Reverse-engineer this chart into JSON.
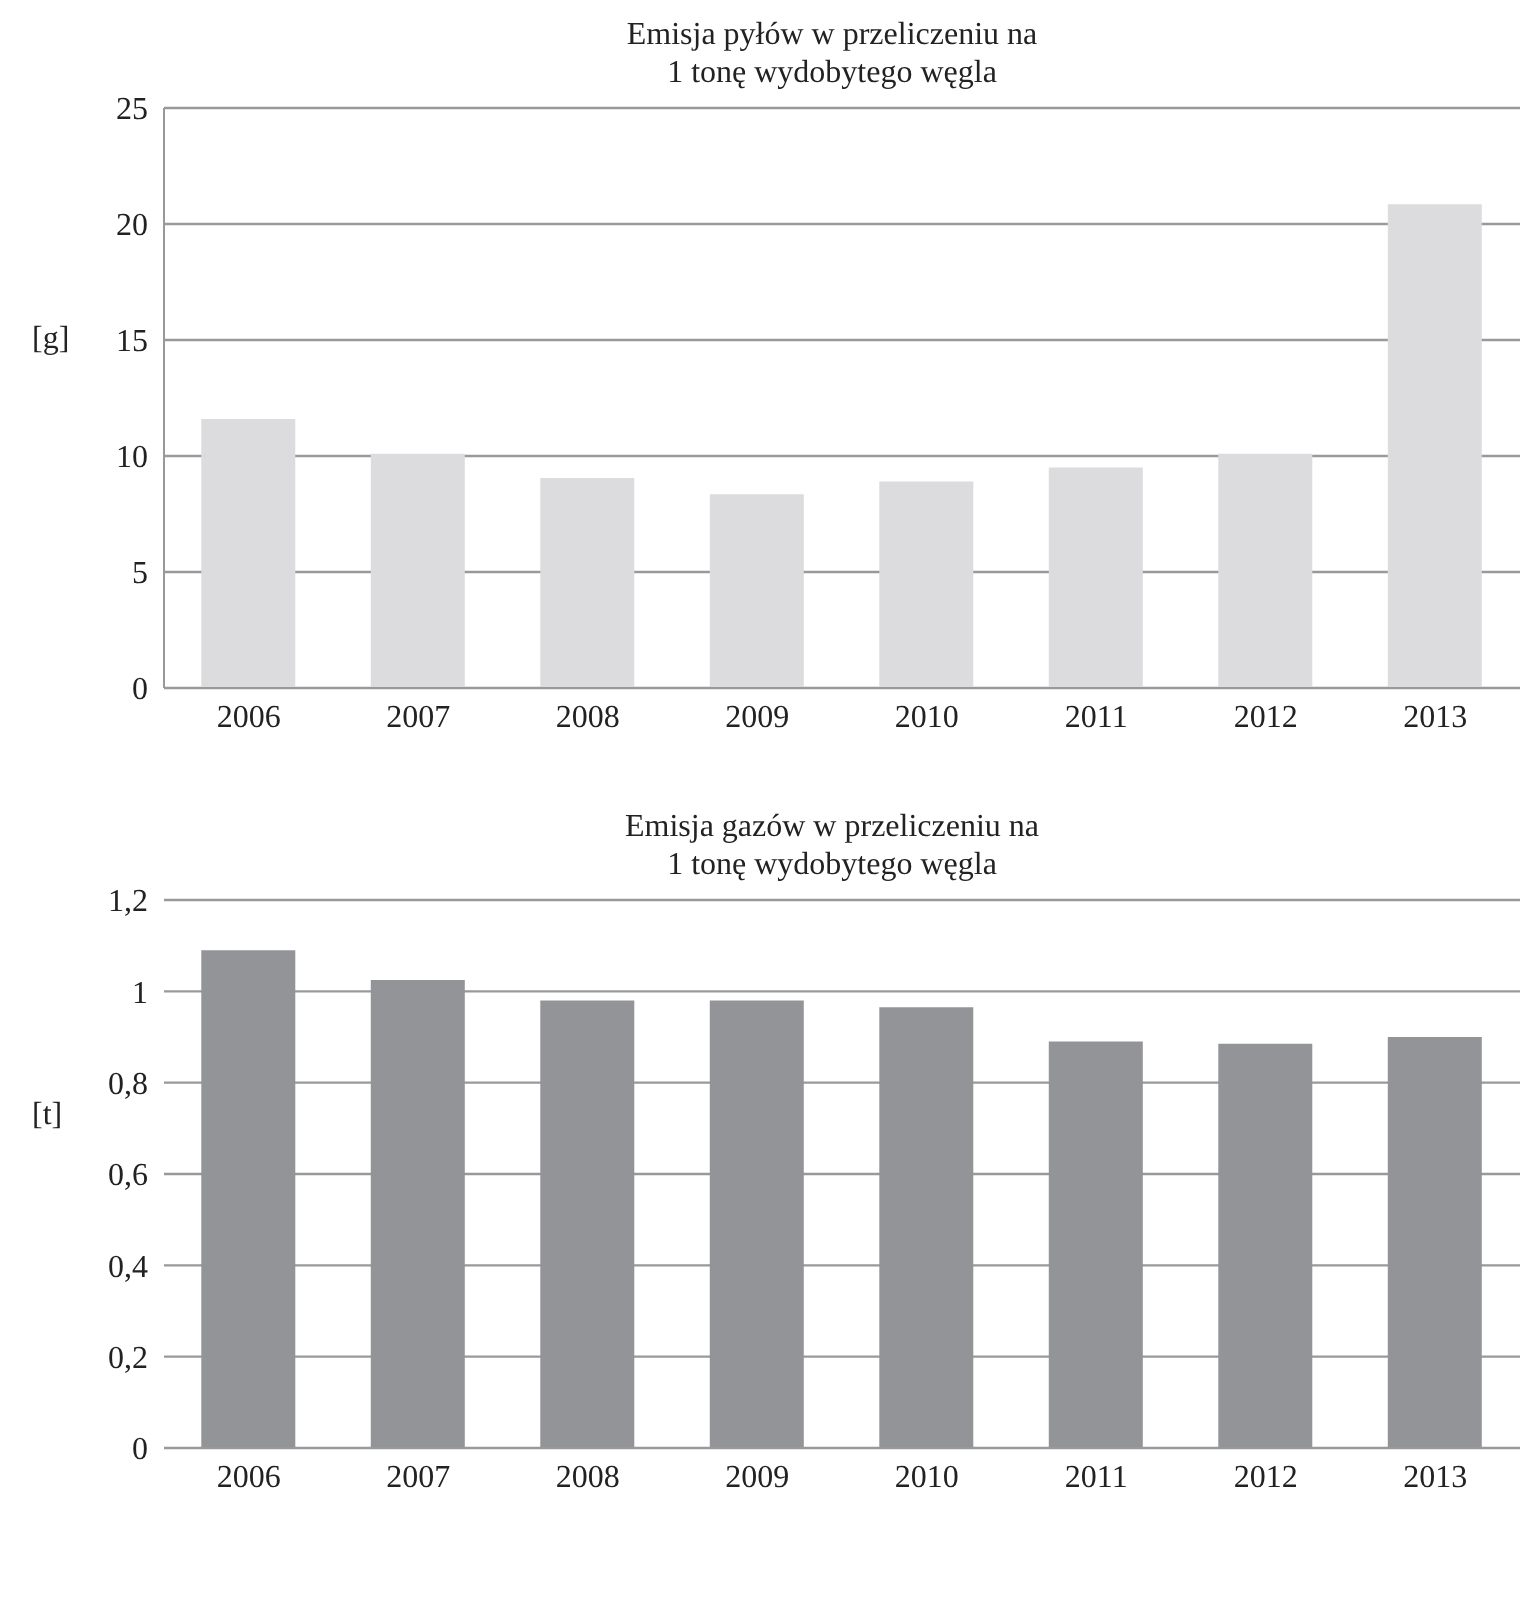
{
  "chart_data": [
    {
      "type": "bar",
      "title": "Emisja pyłów w przeliczeniu na\n1 tonę wydobytego węgla",
      "ylabel": "[g]",
      "categories": [
        "2006",
        "2007",
        "2008",
        "2009",
        "2010",
        "2011",
        "2012",
        "2013"
      ],
      "values": [
        11.6,
        10.1,
        9.05,
        8.35,
        8.9,
        9.5,
        10.1,
        20.85
      ],
      "color": "#dcdcde",
      "ylim": [
        0,
        25
      ],
      "yticks": [
        0,
        5,
        10,
        15,
        20,
        25
      ],
      "grid": "y"
    },
    {
      "type": "bar",
      "title": "Emisja gazów w przeliczeniu na\n1 tonę wydobytego węgla",
      "ylabel": "[t]",
      "categories": [
        "2006",
        "2007",
        "2008",
        "2009",
        "2010",
        "2011",
        "2012",
        "2013"
      ],
      "values": [
        1.09,
        1.025,
        0.98,
        0.98,
        0.965,
        0.89,
        0.885,
        0.9
      ],
      "color": "#939498",
      "ylim": [
        0,
        1.2
      ],
      "yticks": [
        0,
        {
          "value": 0.2,
          "label": "0,2"
        },
        {
          "value": 0.4,
          "label": "0,4"
        },
        {
          "value": 0.6,
          "label": "0,6"
        },
        {
          "value": 0.8,
          "label": "0,8"
        },
        1,
        {
          "value": 1.2,
          "label": "1,2"
        }
      ],
      "grid": "y"
    }
  ]
}
